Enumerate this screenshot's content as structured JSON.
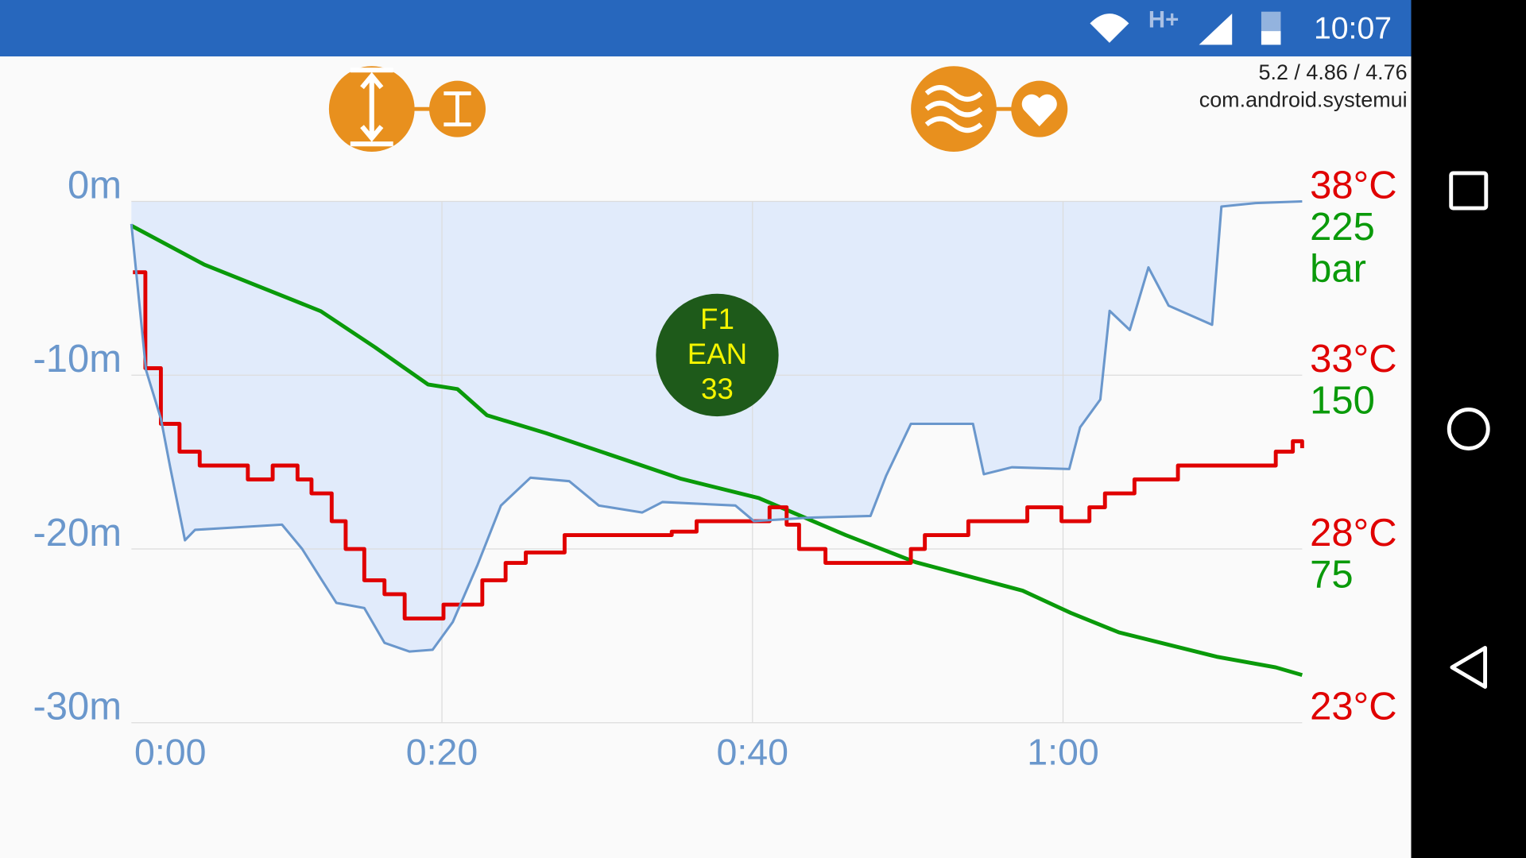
{
  "status_bar": {
    "time": "10:07",
    "network": "H+"
  },
  "overlay": {
    "stats": "5.2 / 4.86 / 4.76",
    "process": "com.android.systemui"
  },
  "badge": {
    "lines": [
      "F1",
      "EAN",
      "33"
    ]
  },
  "chart_data": {
    "type": "line",
    "xlim": [
      0,
      75.4
    ],
    "xticks": [
      {
        "value": 0,
        "label": "0:00"
      },
      {
        "value": 20,
        "label": "0:20"
      },
      {
        "value": 40,
        "label": "0:40"
      },
      {
        "value": 60,
        "label": "1:00"
      }
    ],
    "ylim": [
      -30,
      0
    ],
    "yticks": [
      {
        "value": 0,
        "label": "0m"
      },
      {
        "value": -10,
        "label": "-10m"
      },
      {
        "value": -20,
        "label": "-20m"
      },
      {
        "value": -30,
        "label": "-30m"
      }
    ],
    "y2lim": [
      23,
      38
    ],
    "y2ticks": [
      {
        "value": 38,
        "label": "38°C"
      },
      {
        "value": 33,
        "label": "33°C"
      },
      {
        "value": 28,
        "label": "28°C"
      },
      {
        "value": 23,
        "label": "23°C"
      }
    ],
    "y3lim": [
      0,
      225
    ],
    "y3ticks": [
      225,
      150,
      75
    ],
    "y3_unit": "bar",
    "grid": true,
    "series": [
      {
        "color": "#6a97cc",
        "axis": "y",
        "fill": "#e1ebfb",
        "x": [
          0,
          0.94,
          1.9,
          2.5,
          3.45,
          4.1,
          5.96,
          9.7,
          11,
          12.2,
          13.2,
          15,
          16.3,
          17.9,
          19.4,
          20.7,
          22.3,
          23.8,
          25.7,
          28.2,
          30.1,
          32.9,
          34.2,
          38.9,
          40.1,
          43.6,
          47.6,
          48.6,
          50.2,
          54.2,
          54.9,
          56.7,
          60.4,
          61.1,
          62.4,
          63,
          64.3,
          65.5,
          66.8,
          69.6,
          70.2,
          72.4,
          75.4
        ],
        "values": [
          -1.3,
          -9.7,
          -12.5,
          -15.3,
          -19.5,
          -18.9,
          -18.8,
          -18.6,
          -20,
          -21.7,
          -23.1,
          -23.4,
          -25.4,
          -25.9,
          -25.8,
          -24.2,
          -20.9,
          -17.5,
          -15.9,
          -16.1,
          -17.5,
          -17.9,
          -17.3,
          -17.5,
          -18.4,
          -18.2,
          -18.1,
          -15.8,
          -12.8,
          -12.8,
          -15.7,
          -15.3,
          -15.4,
          -13,
          -11.4,
          -6.3,
          -7.4,
          -3.8,
          -6,
          -7.1,
          -0.3,
          -0.1,
          0
        ]
      },
      {
        "color": "#e00000",
        "axis": "y2",
        "step": true,
        "x": [
          0.1,
          0.9,
          1.9,
          3.1,
          4.4,
          7.5,
          9.1,
          10.7,
          11.6,
          12.9,
          13.8,
          15,
          16.3,
          17.6,
          20.1,
          22.6,
          24.1,
          25.4,
          27.9,
          34.8,
          36.4,
          41.1,
          42.2,
          43,
          44.7,
          50.2,
          51.1,
          53.9,
          57.7,
          59.9,
          61.7,
          62.7,
          64.6,
          67.4,
          73.7,
          74.8,
          75.4
        ],
        "values": [
          35.96,
          33.2,
          31.6,
          30.8,
          30.4,
          30.0,
          30.4,
          30.0,
          29.6,
          28.8,
          28.0,
          27.1,
          26.7,
          26.0,
          26.4,
          27.1,
          27.6,
          27.9,
          28.4,
          28.5,
          28.8,
          29.2,
          28.7,
          28.0,
          27.6,
          28.0,
          28.4,
          28.8,
          29.2,
          28.8,
          29.2,
          29.6,
          30.0,
          30.4,
          30.8,
          31.1,
          30.9
        ]
      },
      {
        "color": "#0a9a0a",
        "axis": "y3",
        "x": [
          0,
          4.7,
          12.2,
          15.7,
          19.1,
          21,
          22.9,
          26.7,
          31.7,
          35.4,
          40.4,
          46,
          50.5,
          57.4,
          60.5,
          63.6,
          69.9,
          73.7,
          75.4
        ],
        "values": [
          214.5,
          197.7,
          177.6,
          162,
          146,
          144,
          132.7,
          125,
          113.7,
          105.3,
          97,
          81,
          69.3,
          57,
          47.4,
          39,
          28.5,
          23.9,
          20.6
        ]
      }
    ]
  }
}
